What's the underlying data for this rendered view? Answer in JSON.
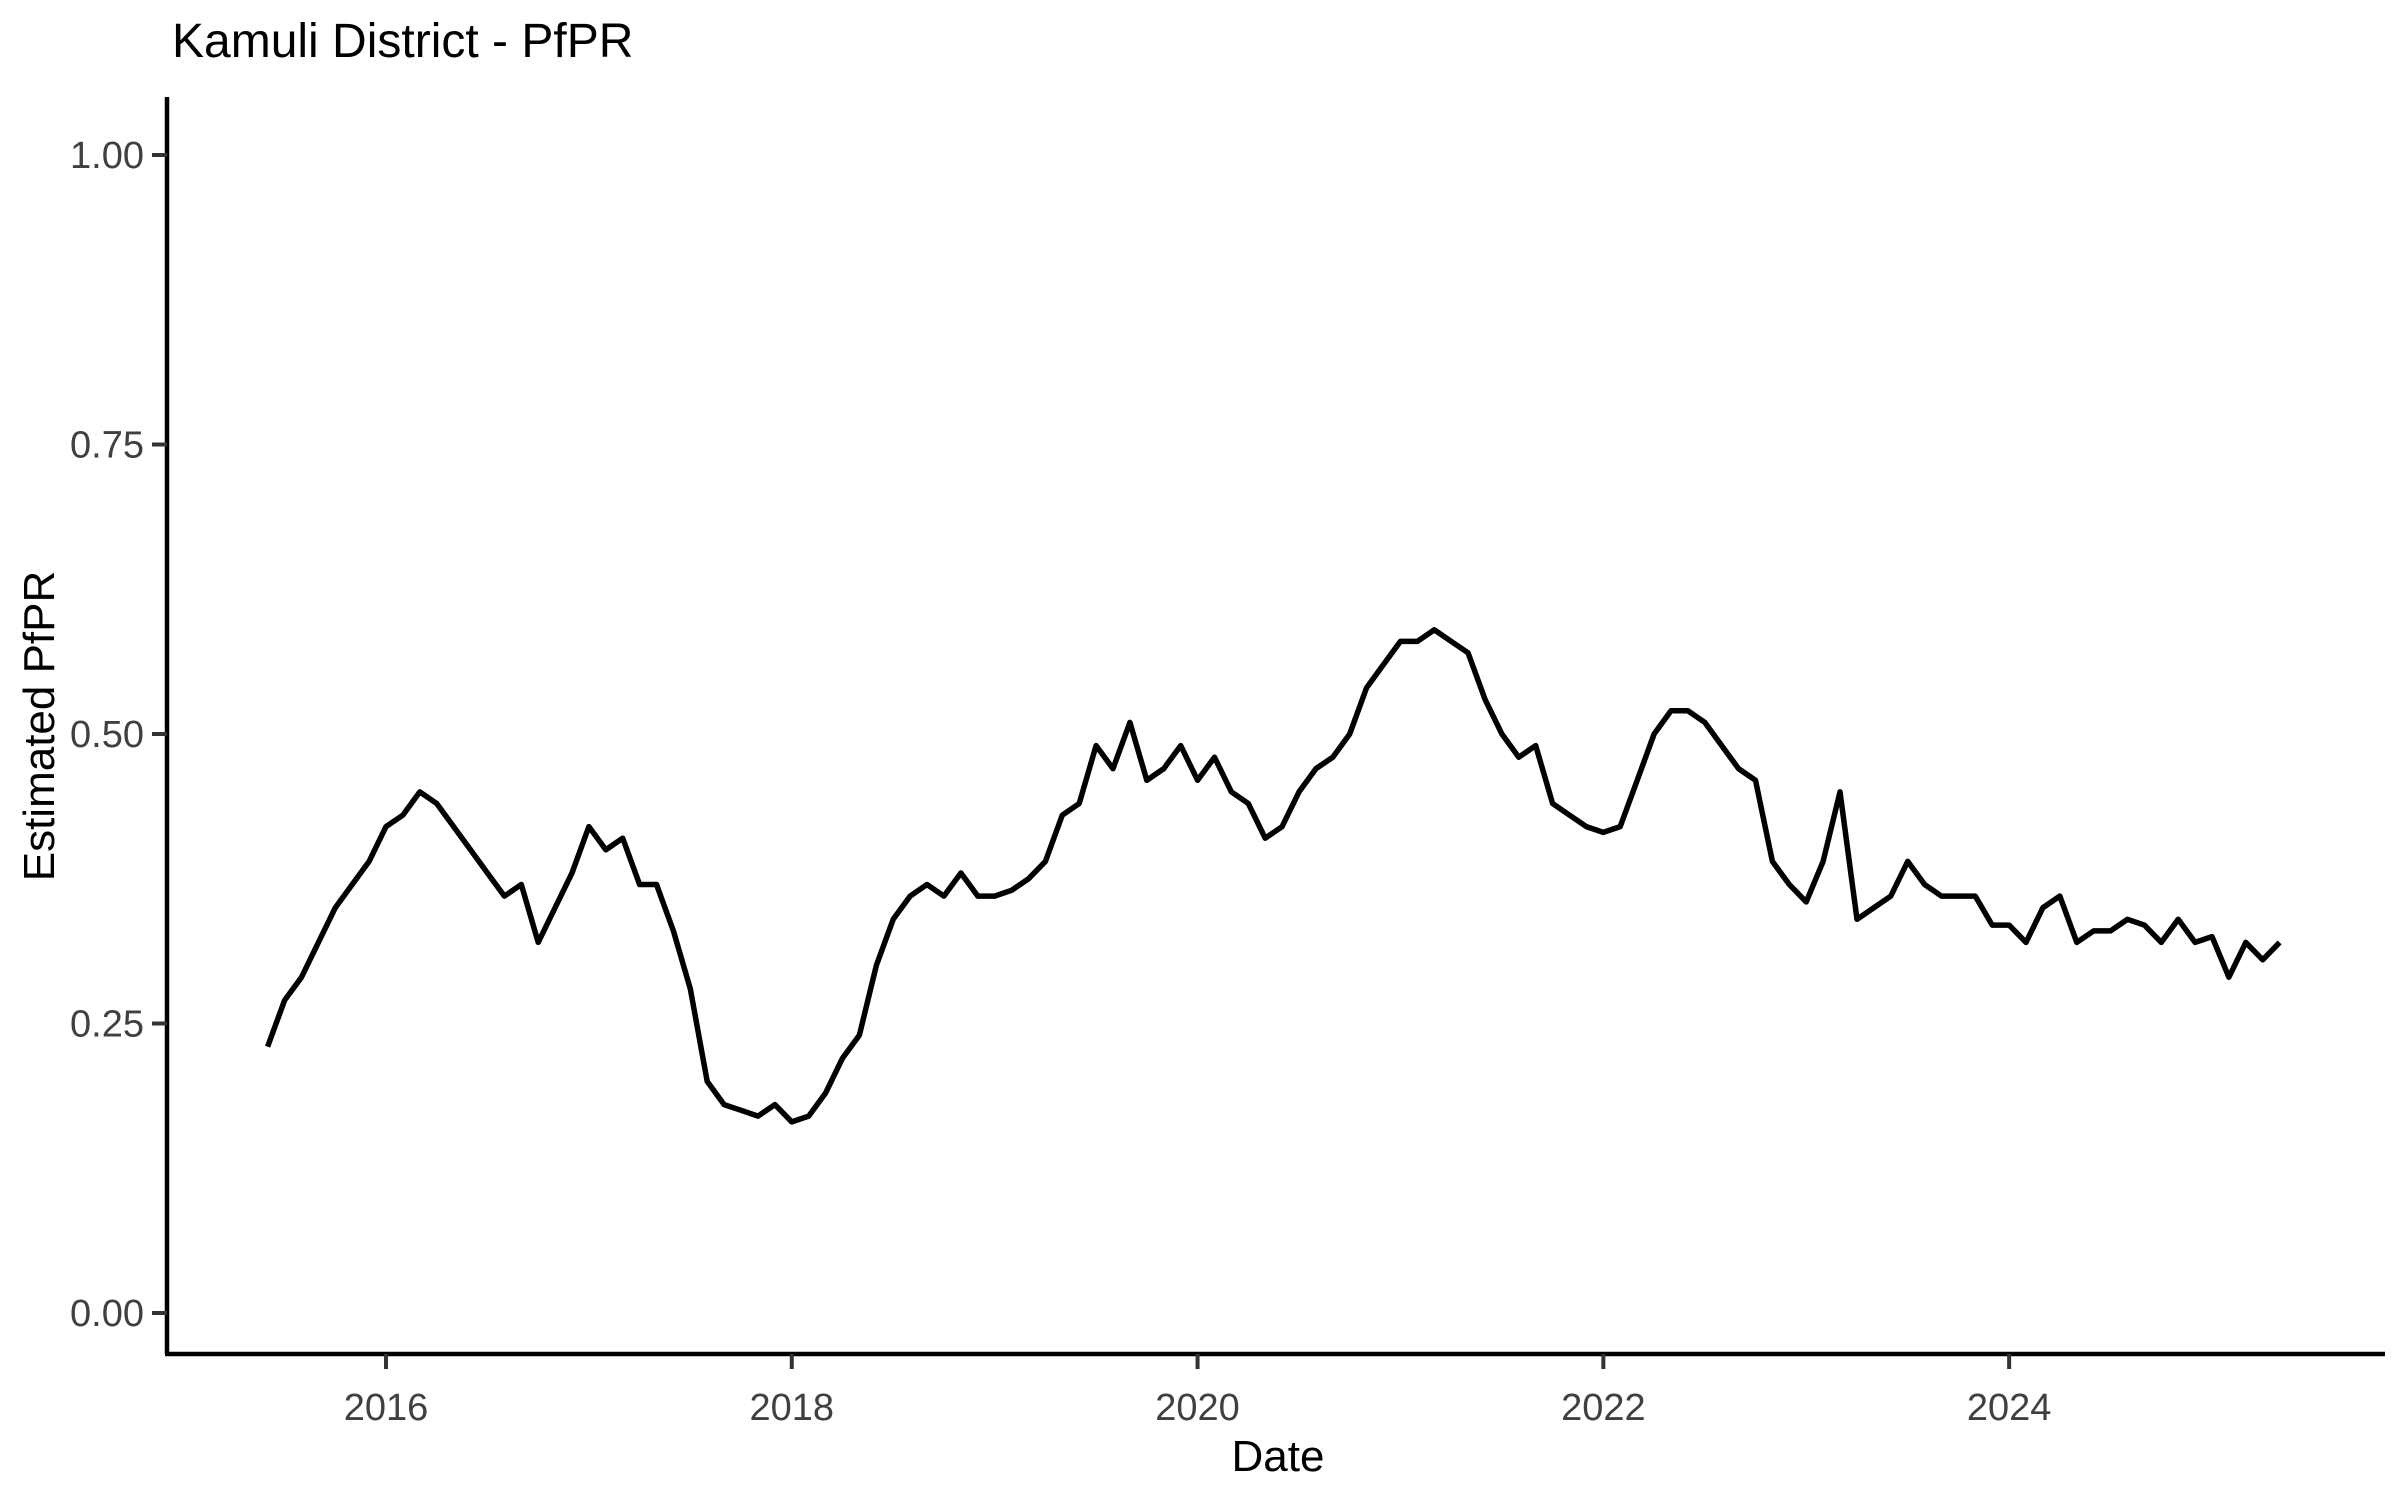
{
  "page": {
    "background": "#ffffff"
  },
  "chart_data": {
    "type": "line",
    "title": "Kamuli District - PfPR",
    "xlabel": "Date",
    "ylabel": "Estimated PfPR",
    "line_color": "#000000",
    "axis_color": "#000000",
    "tick_label_color": "#404040",
    "grid": "off",
    "legend": "none",
    "ylim": [
      0,
      1.0
    ],
    "y_ticks": [
      "0.00",
      "0.25",
      "0.50",
      "0.75",
      "1.00"
    ],
    "x_ticks": [
      "2016",
      "2018",
      "2020",
      "2022",
      "2024"
    ],
    "x": [
      "2015-06",
      "2015-07",
      "2015-08",
      "2015-09",
      "2015-10",
      "2015-11",
      "2015-12",
      "2016-01",
      "2016-02",
      "2016-03",
      "2016-04",
      "2016-05",
      "2016-06",
      "2016-07",
      "2016-08",
      "2016-09",
      "2016-10",
      "2016-11",
      "2016-12",
      "2017-01",
      "2017-02",
      "2017-03",
      "2017-04",
      "2017-05",
      "2017-06",
      "2017-07",
      "2017-08",
      "2017-09",
      "2017-10",
      "2017-11",
      "2017-12",
      "2018-01",
      "2018-02",
      "2018-03",
      "2018-04",
      "2018-05",
      "2018-06",
      "2018-07",
      "2018-08",
      "2018-09",
      "2018-10",
      "2018-11",
      "2018-12",
      "2019-01",
      "2019-02",
      "2019-03",
      "2019-04",
      "2019-05",
      "2019-06",
      "2019-07",
      "2019-08",
      "2019-09",
      "2019-10",
      "2019-11",
      "2019-12",
      "2020-01",
      "2020-02",
      "2020-03",
      "2020-04",
      "2020-05",
      "2020-06",
      "2020-07",
      "2020-08",
      "2020-09",
      "2020-10",
      "2020-11",
      "2020-12",
      "2021-01",
      "2021-02",
      "2021-03",
      "2021-04",
      "2021-05",
      "2021-06",
      "2021-07",
      "2021-08",
      "2021-09",
      "2021-10",
      "2021-11",
      "2021-12",
      "2022-01",
      "2022-02",
      "2022-03",
      "2022-04",
      "2022-05",
      "2022-06",
      "2022-07",
      "2022-08",
      "2022-09",
      "2022-10",
      "2022-11",
      "2022-12",
      "2023-01",
      "2023-02",
      "2023-03",
      "2023-04",
      "2023-05",
      "2023-06",
      "2023-07",
      "2023-08",
      "2023-09",
      "2023-10",
      "2023-11",
      "2023-12",
      "2024-01",
      "2024-02",
      "2024-03",
      "2024-04",
      "2024-05",
      "2024-06",
      "2024-07",
      "2024-08",
      "2024-09",
      "2024-10",
      "2024-11",
      "2024-12",
      "2025-01",
      "2025-02",
      "2025-03",
      "2025-04",
      "2025-05"
    ],
    "values": [
      0.23,
      0.27,
      0.29,
      0.32,
      0.35,
      0.37,
      0.39,
      0.42,
      0.43,
      0.45,
      0.44,
      0.42,
      0.4,
      0.38,
      0.36,
      0.37,
      0.32,
      0.35,
      0.38,
      0.42,
      0.4,
      0.41,
      0.37,
      0.37,
      0.33,
      0.28,
      0.2,
      0.18,
      0.175,
      0.17,
      0.18,
      0.165,
      0.17,
      0.19,
      0.22,
      0.24,
      0.3,
      0.34,
      0.36,
      0.37,
      0.36,
      0.38,
      0.36,
      0.36,
      0.365,
      0.375,
      0.39,
      0.43,
      0.44,
      0.49,
      0.47,
      0.51,
      0.46,
      0.47,
      0.49,
      0.46,
      0.48,
      0.45,
      0.44,
      0.41,
      0.42,
      0.45,
      0.47,
      0.48,
      0.5,
      0.54,
      0.56,
      0.58,
      0.58,
      0.59,
      0.58,
      0.57,
      0.53,
      0.5,
      0.48,
      0.49,
      0.44,
      0.43,
      0.42,
      0.415,
      0.42,
      0.46,
      0.5,
      0.52,
      0.52,
      0.51,
      0.49,
      0.47,
      0.46,
      0.39,
      0.37,
      0.355,
      0.39,
      0.45,
      0.34,
      0.35,
      0.36,
      0.39,
      0.37,
      0.36,
      0.36,
      0.36,
      0.335,
      0.335,
      0.32,
      0.35,
      0.36,
      0.32,
      0.33,
      0.33,
      0.34,
      0.335,
      0.32,
      0.34,
      0.32,
      0.325,
      0.29,
      0.32,
      0.305,
      0.32
    ]
  }
}
